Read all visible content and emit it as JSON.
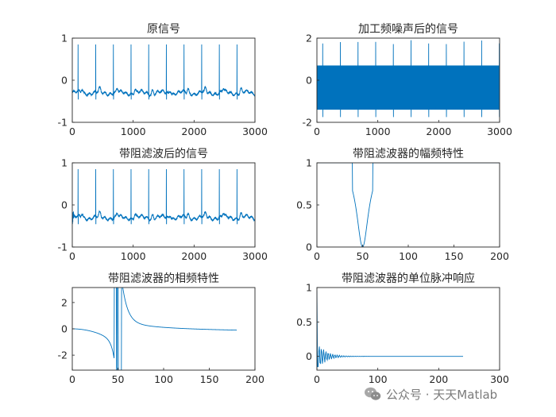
{
  "chart_data": [
    {
      "type": "line",
      "title": "原信号",
      "xlim": [
        0,
        3000
      ],
      "ylim": [
        -1,
        1
      ],
      "xticks": [
        "0",
        "1000",
        "2000",
        "3000"
      ],
      "yticks": [
        "-1",
        "0",
        "1"
      ],
      "series": [
        {
          "kind": "ecg",
          "n": 3000,
          "baseline": -0.3,
          "peak": 0.85,
          "trough": -0.45,
          "beats": 10,
          "period": 290,
          "first_beat": 95
        }
      ]
    },
    {
      "type": "line",
      "title": "加工频噪声后的信号",
      "xlim": [
        0,
        3000
      ],
      "ylim": [
        -2,
        2
      ],
      "xticks": [
        "0",
        "1000",
        "2000",
        "3000"
      ],
      "yticks": [
        "-2",
        "0",
        "2"
      ],
      "series": [
        {
          "kind": "ecg_plus_noise",
          "n": 3000,
          "band": [
            -1.4,
            0.7
          ],
          "peak": 1.9,
          "trough": -1.75,
          "beats": 10,
          "period": 290,
          "first_beat": 95
        }
      ]
    },
    {
      "type": "line",
      "title": "带阻滤波后的信号",
      "xlim": [
        0,
        3000
      ],
      "ylim": [
        -1,
        1
      ],
      "xticks": [
        "0",
        "1000",
        "2000",
        "3000"
      ],
      "yticks": [
        "-1",
        "0",
        "1"
      ],
      "series": [
        {
          "kind": "ecg",
          "n": 3000,
          "baseline": -0.3,
          "peak": 0.85,
          "trough": -0.45,
          "beats": 10,
          "period": 290,
          "first_beat": 95
        }
      ]
    },
    {
      "type": "line",
      "title": "带阻滤波器的幅频特性",
      "xlim": [
        0,
        200
      ],
      "ylim": [
        0,
        1
      ],
      "xticks": [
        "0",
        "50",
        "100",
        "150",
        "200"
      ],
      "yticks": [
        "0",
        "0.5",
        "1"
      ],
      "series": [
        {
          "kind": "notch_mag",
          "center": 50,
          "halfwidth": 8
        }
      ]
    },
    {
      "type": "line",
      "title": "带阻滤波器的相频特性",
      "xlim": [
        0,
        200
      ],
      "ylim": [
        -3.14,
        3.14
      ],
      "xticks": [
        "0",
        "50",
        "100",
        "150",
        "200"
      ],
      "yticks": [
        "-2",
        "0",
        "2"
      ],
      "series": [
        {
          "kind": "notch_phase",
          "center": 50,
          "x_end": 180
        }
      ]
    },
    {
      "type": "line",
      "title": "带阻滤波器的单位脉冲响应",
      "xlim": [
        0,
        300
      ],
      "ylim": [
        -0.2,
        1
      ],
      "xticks": [
        "0",
        "100",
        "200",
        "300"
      ],
      "yticks": [
        "0",
        "0.5",
        "1"
      ],
      "series": [
        {
          "kind": "impulse",
          "x_end": 240
        }
      ]
    }
  ],
  "watermark": {
    "text": "公众号 · 天天Matlab",
    "icon": "wechat-icon"
  }
}
